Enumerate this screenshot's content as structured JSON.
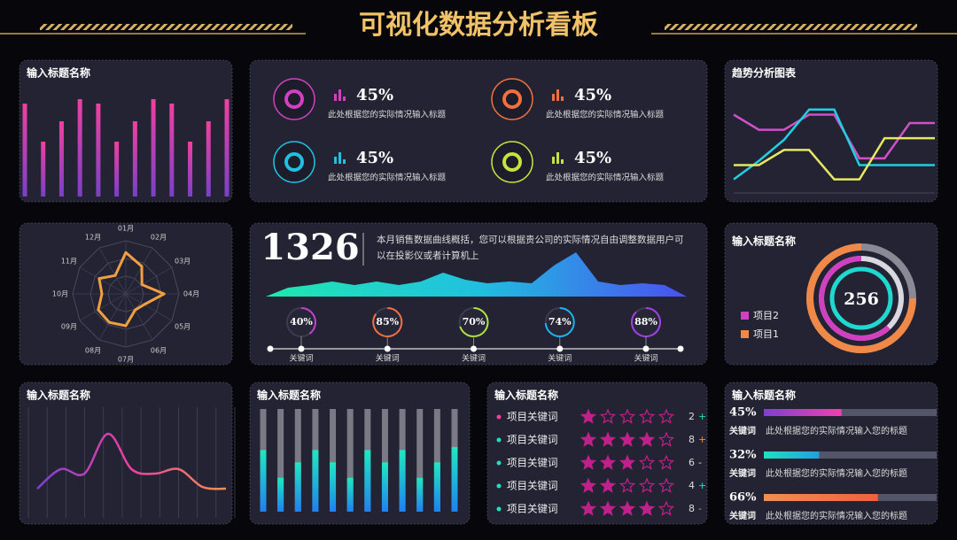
{
  "header": {
    "title": "可视化数据分析看板"
  },
  "stats": [
    {
      "value": "45%",
      "text": "此处根据您的实际情况输入标题"
    },
    {
      "value": "45%",
      "text": "此处根据您的实际情况输入标题"
    },
    {
      "value": "45%",
      "text": "此处根据您的实际情况输入标题"
    },
    {
      "value": "45%",
      "text": "此处根据您的实际情况输入标题"
    }
  ],
  "summary": {
    "value": "1326",
    "text": "本月销售数据曲线概括，您可以根据贵公司的实际情况自由调整数据用户可以在投影仪或者计算机上"
  },
  "chart_data": [
    {
      "type": "bar",
      "title": "输入标题名称",
      "categories": [
        null,
        null,
        null,
        null,
        null,
        null,
        null,
        null,
        null,
        null,
        null,
        null
      ],
      "values": [
        105,
        62,
        85,
        110,
        105,
        62,
        85,
        110,
        105,
        62,
        85,
        110
      ],
      "ylim": [
        0,
        110
      ]
    },
    {
      "type": "line",
      "title": "趋势分析图表",
      "categories": [
        null,
        null,
        null,
        null,
        null,
        null,
        null,
        null,
        null
      ],
      "series": [
        {
          "name": null,
          "color": "#d050c8",
          "values": [
            90,
            72,
            72,
            90,
            90,
            38,
            38,
            80,
            80
          ]
        },
        {
          "name": null,
          "color": "#20d0e0",
          "values": [
            13,
            35,
            60,
            96,
            96,
            30,
            30,
            30,
            30
          ]
        },
        {
          "name": null,
          "color": "#e8e860",
          "values": [
            30,
            30,
            48,
            48,
            13,
            13,
            62,
            62,
            62
          ]
        }
      ],
      "ylim": [
        0,
        100
      ]
    },
    {
      "type": "radar",
      "categories": [
        "01月",
        "02月",
        "03月",
        "04月",
        "05月",
        "06月",
        "07月",
        "08月",
        "09月",
        "10月",
        "11月",
        "12月"
      ],
      "values": [
        78,
        60,
        35,
        72,
        40,
        35,
        60,
        62,
        60,
        45,
        58,
        40
      ],
      "color": "#f0a040",
      "ylim": [
        0,
        100
      ]
    },
    {
      "type": "area",
      "categories": [
        null,
        null,
        null,
        null,
        null,
        null,
        null,
        null,
        null,
        null,
        null,
        null,
        null,
        null,
        null,
        null,
        null,
        null,
        null,
        null
      ],
      "values": [
        0,
        10,
        13,
        17,
        13,
        17,
        13,
        17,
        27,
        19,
        15,
        17,
        15,
        35,
        50,
        17,
        13,
        15,
        13,
        0
      ],
      "ylim": [
        0,
        55
      ]
    },
    {
      "type": "gauge",
      "categories": [
        "关键词",
        "关键词",
        "关键词",
        "关键词",
        "关键词"
      ],
      "values": [
        40,
        85,
        70,
        74,
        88
      ],
      "value_labels": [
        "40%",
        "85%",
        "70%",
        "74%",
        "88%"
      ],
      "colors": [
        "#c040d0",
        "#f07040",
        "#b0e040",
        "#20b0f0",
        "#a040e0"
      ],
      "ylim": [
        0,
        100
      ]
    },
    {
      "type": "rings",
      "title": "输入标题名称",
      "center_value": 256,
      "series": [
        {
          "name": "项目2",
          "color": "#d040c0",
          "values": [
            62
          ]
        },
        {
          "name": "项目1",
          "color": "#f08848",
          "values": [
            75
          ]
        }
      ],
      "ylim": [
        0,
        100
      ]
    },
    {
      "type": "line",
      "title": "输入标题名称",
      "smooth": true,
      "color": "#e050a0",
      "categories": [
        null,
        null,
        null,
        null,
        null,
        null,
        null,
        null,
        null
      ],
      "values": [
        18,
        40,
        35,
        80,
        40,
        35,
        40,
        20,
        18
      ],
      "ylim": [
        0,
        100
      ]
    },
    {
      "type": "column",
      "title": "输入标题名称",
      "categories": [
        null,
        null,
        null,
        null,
        null,
        null,
        null,
        null,
        null,
        null,
        null,
        null
      ],
      "values": [
        60,
        33,
        48,
        60,
        48,
        33,
        60,
        48,
        60,
        33,
        48,
        63
      ],
      "ylim": [
        0,
        100
      ]
    },
    {
      "type": "rating",
      "title": "输入标题名称",
      "categories": [
        "项目关键词",
        "项目关键词",
        "项目关键词",
        "项目关键词",
        "项目关键词"
      ],
      "values": [
        1,
        4,
        3,
        2,
        4
      ],
      "scores": [
        2,
        8,
        6,
        4,
        8
      ],
      "trends": [
        "+",
        "+",
        "-",
        "+",
        "-"
      ],
      "ylim": [
        0,
        5
      ]
    },
    {
      "type": "progress",
      "title": "输入标题名称",
      "categories": [
        "关键词",
        "关键词",
        "关键词"
      ],
      "texts": [
        "此处根据您的实际情况输入您的标题",
        "此处根据您的实际情况输入您的标题",
        "此处根据您的实际情况输入您的标题"
      ],
      "values": [
        45,
        32,
        66
      ],
      "value_labels": [
        "45%",
        "32%",
        "66%"
      ],
      "xlim": [
        0,
        100
      ]
    }
  ]
}
